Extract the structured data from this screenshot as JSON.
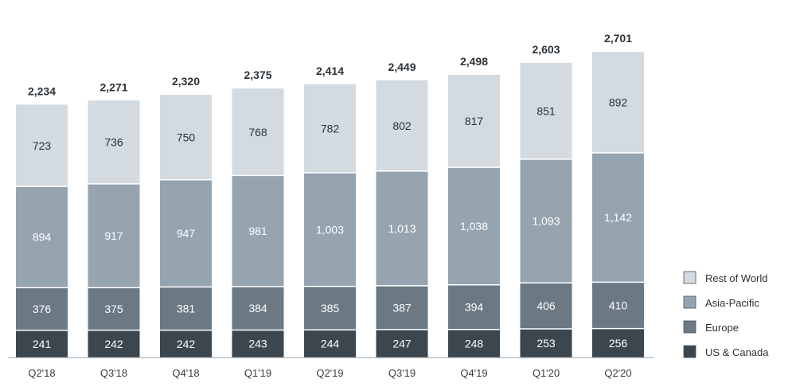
{
  "chart_data": {
    "type": "bar",
    "stacked": true,
    "categories": [
      "Q2'18",
      "Q3'18",
      "Q4'18",
      "Q1'19",
      "Q2'19",
      "Q3'19",
      "Q4'19",
      "Q1'20",
      "Q2'20"
    ],
    "series": [
      {
        "name": "US & Canada",
        "color": "#3b464f",
        "label_color": "#ffffff",
        "values": [
          241,
          242,
          242,
          243,
          244,
          247,
          248,
          253,
          256
        ],
        "labels": [
          "241",
          "242",
          "242",
          "243",
          "244",
          "247",
          "248",
          "253",
          "256"
        ]
      },
      {
        "name": "Europe",
        "color": "#6b7984",
        "label_color": "#ffffff",
        "values": [
          376,
          375,
          381,
          384,
          385,
          387,
          394,
          406,
          410
        ],
        "labels": [
          "376",
          "375",
          "381",
          "384",
          "385",
          "387",
          "394",
          "406",
          "410"
        ]
      },
      {
        "name": "Asia-Pacific",
        "color": "#96a4b0",
        "label_color": "#ffffff",
        "values": [
          894,
          917,
          947,
          981,
          1003,
          1013,
          1038,
          1093,
          1142
        ],
        "labels": [
          "894",
          "917",
          "947",
          "981",
          "1,003",
          "1,013",
          "1,038",
          "1,093",
          "1,142"
        ]
      },
      {
        "name": "Rest of World",
        "color": "#d3dae0",
        "label_color": "#2c3338",
        "values": [
          723,
          736,
          750,
          768,
          782,
          802,
          817,
          851,
          892
        ],
        "labels": [
          "723",
          "736",
          "750",
          "768",
          "782",
          "802",
          "817",
          "851",
          "892"
        ]
      }
    ],
    "totals": [
      "2,234",
      "2,271",
      "2,320",
      "2,375",
      "2,414",
      "2,449",
      "2,498",
      "2,603",
      "2,701"
    ],
    "legend_order": [
      "Rest of World",
      "Asia-Pacific",
      "Europe",
      "US & Canada"
    ],
    "legend_position": "right",
    "grid": false
  }
}
